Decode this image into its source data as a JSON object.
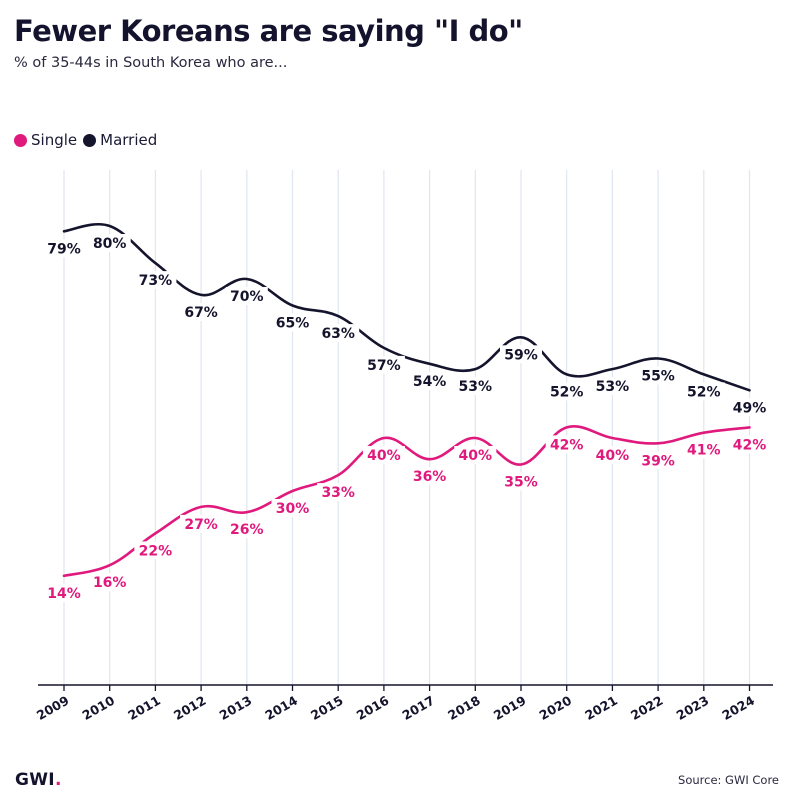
{
  "title": "Fewer Koreans are saying \"I do\"",
  "subtitle": "% of 35-44s in South Korea who are...",
  "legend": [
    {
      "label": "Single",
      "color": "#e0197d"
    },
    {
      "label": "Married",
      "color": "#15142d"
    }
  ],
  "footer": {
    "logo_text": "GWI",
    "logo_dot": ".",
    "source": "Source: GWI Core"
  },
  "chart_data": {
    "type": "line",
    "title": "Fewer Koreans are saying \"I do\"",
    "subtitle": "% of 35-44s in South Korea who are...",
    "xlabel": "",
    "ylabel": "",
    "categories": [
      "2009",
      "2010",
      "2011",
      "2012",
      "2013",
      "2014",
      "2015",
      "2016",
      "2017",
      "2018",
      "2019",
      "2020",
      "2021",
      "2022",
      "2023",
      "2024"
    ],
    "ylim": [
      0,
      100
    ],
    "grid": "vertical",
    "legend_position": "top-left",
    "series": [
      {
        "name": "Single",
        "color": "#e0197d",
        "values": [
          14,
          16,
          22,
          27,
          26,
          30,
          33,
          40,
          36,
          40,
          35,
          42,
          40,
          39,
          41,
          42
        ],
        "labels": [
          "14%",
          "16%",
          "22%",
          "27%",
          "26%",
          "30%",
          "33%",
          "40%",
          "36%",
          "40%",
          "35%",
          "42%",
          "40%",
          "39%",
          "41%",
          "42%"
        ]
      },
      {
        "name": "Married",
        "color": "#15142d",
        "values": [
          79,
          80,
          73,
          67,
          70,
          65,
          63,
          57,
          54,
          53,
          59,
          52,
          53,
          55,
          52,
          49
        ],
        "labels": [
          "79%",
          "80%",
          "73%",
          "67%",
          "70%",
          "65%",
          "63%",
          "57%",
          "54%",
          "53%",
          "59%",
          "52%",
          "53%",
          "55%",
          "52%",
          "49%"
        ]
      }
    ]
  }
}
